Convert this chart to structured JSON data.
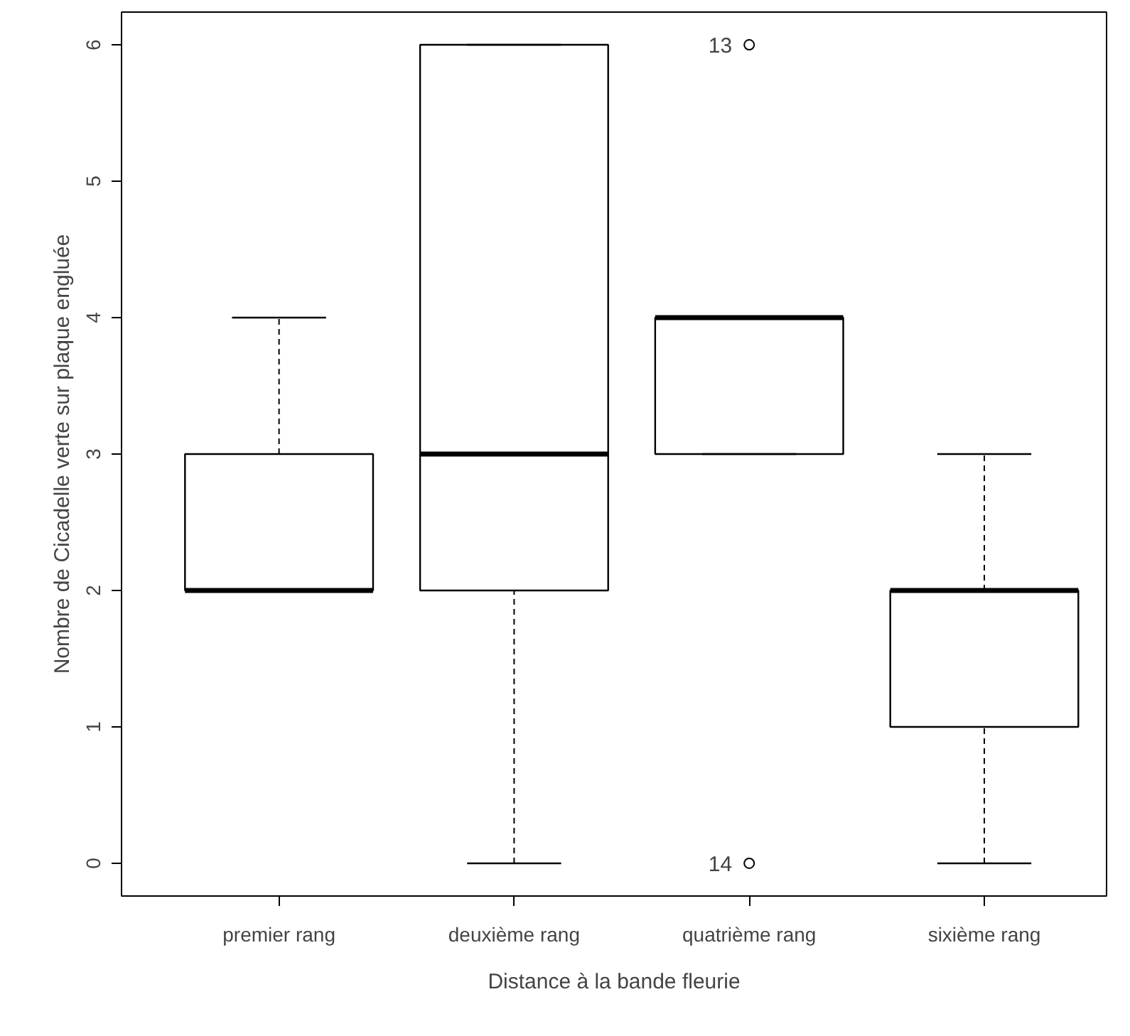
{
  "chart_data": {
    "type": "box",
    "xlabel": "Distance à la bande fleurie",
    "ylabel": "Nombre de Cicadelle verte sur plaque engluée",
    "categories": [
      "premier rang",
      "deuxième rang",
      "quatrième rang",
      "sixième rang"
    ],
    "boxes": [
      {
        "low": 2,
        "q1": 2,
        "median": 2,
        "q3": 3,
        "high": 4
      },
      {
        "low": 0,
        "q1": 2,
        "median": 3,
        "q3": 6,
        "high": 6
      },
      {
        "low": 3,
        "q1": 3,
        "median": 4,
        "q3": 4,
        "high": 4,
        "outliers": [
          6,
          0
        ]
      },
      {
        "low": 0,
        "q1": 1,
        "median": 2,
        "q3": 2,
        "high": 3
      }
    ],
    "color": "#000000",
    "ylim": [
      -0.24,
      6.24
    ],
    "yticks": [
      0,
      1,
      2,
      3,
      4,
      5,
      6
    ],
    "annotations": [
      "13",
      "14"
    ],
    "grid": false
  }
}
